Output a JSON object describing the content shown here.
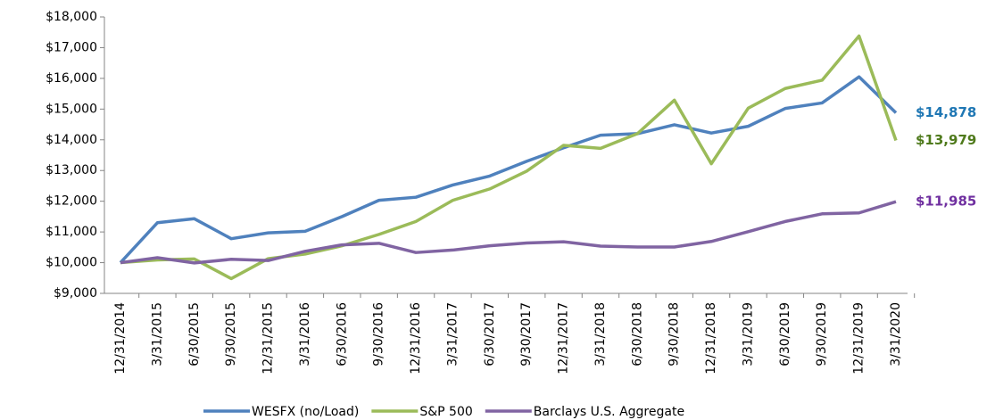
{
  "chart_data": {
    "type": "line",
    "categories": [
      "12/31/2014",
      "3/31/2015",
      "6/30/2015",
      "9/30/2015",
      "12/31/2015",
      "3/31/2016",
      "6/30/2016",
      "9/30/2016",
      "12/31/2016",
      "3/31/2017",
      "6/30/2017",
      "9/30/2017",
      "12/31/2017",
      "3/31/2018",
      "6/30/2018",
      "9/30/2018",
      "12/31/2018",
      "3/31/2019",
      "6/30/2019",
      "9/30/2019",
      "12/31/2019",
      "3/31/2020"
    ],
    "series": [
      {
        "name": "WESFX (no/Load)",
        "color": "#4f81bd",
        "label_color": "#1f77b4",
        "values": [
          10000,
          11300,
          11430,
          10780,
          10970,
          11020,
          11500,
          12030,
          12130,
          12530,
          12820,
          13300,
          13740,
          14150,
          14200,
          14490,
          14220,
          14440,
          15020,
          15200,
          16050,
          14878
        ],
        "value_labels": [
          null,
          null,
          null,
          null,
          null,
          null,
          null,
          null,
          null,
          null,
          null,
          null,
          null,
          null,
          null,
          null,
          null,
          null,
          null,
          null,
          null,
          "$14,878"
        ]
      },
      {
        "name": "S&P 500",
        "color": "#9bbb59",
        "label_color": "#4f7a1c",
        "values": [
          10000,
          10090,
          10120,
          9480,
          10130,
          10280,
          10550,
          10920,
          11340,
          12030,
          12400,
          12980,
          13820,
          13720,
          14200,
          15290,
          13220,
          15030,
          15670,
          15940,
          17380,
          13979
        ],
        "value_labels": [
          null,
          null,
          null,
          null,
          null,
          null,
          null,
          null,
          null,
          null,
          null,
          null,
          null,
          null,
          null,
          null,
          null,
          null,
          null,
          null,
          null,
          "$13,979"
        ]
      },
      {
        "name": "Barclays U.S. Aggregate",
        "color": "#8064a2",
        "label_color": "#7030a0",
        "values": [
          10000,
          10160,
          9990,
          10110,
          10070,
          10370,
          10580,
          10630,
          10330,
          10410,
          10550,
          10640,
          10680,
          10540,
          10510,
          10510,
          10690,
          11010,
          11340,
          11590,
          11620,
          11985
        ],
        "value_labels": [
          null,
          null,
          null,
          null,
          null,
          null,
          null,
          null,
          null,
          null,
          null,
          null,
          null,
          null,
          null,
          null,
          null,
          null,
          null,
          null,
          null,
          "$11,985"
        ]
      }
    ],
    "ylim": [
      9000,
      18000
    ],
    "yticks": [
      {
        "value": 9000,
        "label": "$9,000"
      },
      {
        "value": 10000,
        "label": "$10,000"
      },
      {
        "value": 11000,
        "label": "$11,000"
      },
      {
        "value": 12000,
        "label": "$12,000"
      },
      {
        "value": 13000,
        "label": "$13,000"
      },
      {
        "value": 14000,
        "label": "$14,000"
      },
      {
        "value": 15000,
        "label": "$15,000"
      },
      {
        "value": 16000,
        "label": "$16,000"
      },
      {
        "value": 17000,
        "label": "$17,000"
      },
      {
        "value": 18000,
        "label": "$18,000"
      }
    ],
    "grid": false,
    "legend": "bottom"
  }
}
